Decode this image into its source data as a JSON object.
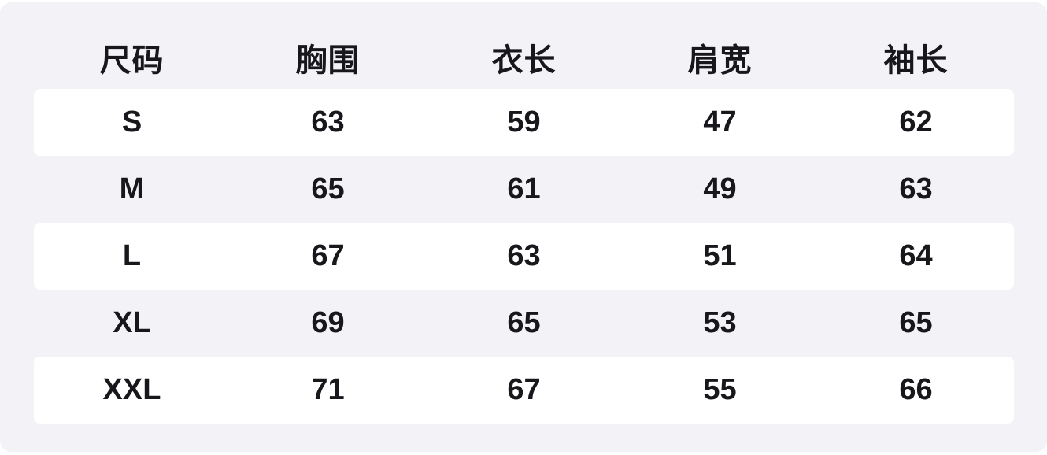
{
  "colors": {
    "panel_bg": "#f2f2f7",
    "stripe_row_bg": "#ffffff",
    "text": "#17171c",
    "page_bg": "#ffffff"
  },
  "chart_data": {
    "type": "table",
    "columns": [
      "尺码",
      "胸围",
      "衣长",
      "肩宽",
      "袖长"
    ],
    "rows": [
      [
        "S",
        "63",
        "59",
        "47",
        "62"
      ],
      [
        "M",
        "65",
        "61",
        "49",
        "63"
      ],
      [
        "L",
        "67",
        "63",
        "51",
        "64"
      ],
      [
        "XL",
        "69",
        "65",
        "53",
        "65"
      ],
      [
        "XXL",
        "71",
        "67",
        "55",
        "66"
      ]
    ]
  }
}
